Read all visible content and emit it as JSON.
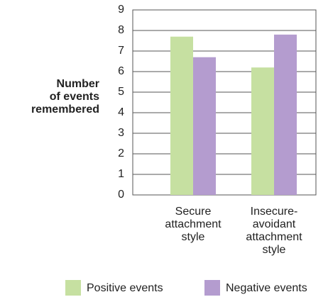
{
  "chart_data": {
    "type": "bar",
    "y_label": "Number\nof events\nremembered",
    "categories": [
      "Secure\nattachment\nstyle",
      "Insecure-\navoidant\nattachment\nstyle"
    ],
    "series": [
      {
        "name": "Positive events",
        "color": "#c6e0a1",
        "values": [
          7.7,
          6.2
        ]
      },
      {
        "name": "Negative events",
        "color": "#b49ccf",
        "values": [
          6.7,
          7.8
        ]
      }
    ],
    "ylim": [
      0,
      9
    ],
    "yticks": [
      0,
      1,
      2,
      3,
      4,
      5,
      6,
      7,
      8,
      9
    ],
    "grid": true,
    "legend": "bottom"
  }
}
